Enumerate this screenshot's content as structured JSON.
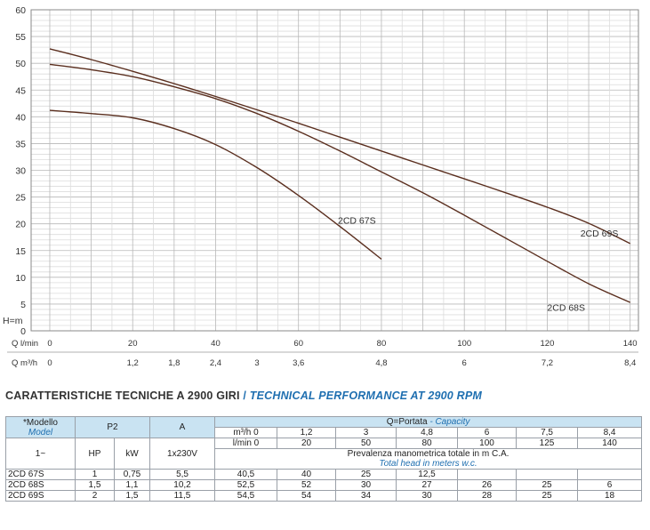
{
  "chart_data": {
    "type": "line",
    "y_ticks": [
      "0",
      "5",
      "10",
      "15",
      "20",
      "25",
      "30",
      "35",
      "40",
      "45",
      "50",
      "55",
      "60"
    ],
    "ylim": [
      0,
      60
    ],
    "ylabel": "H=m",
    "x_axis_lmin": {
      "label": "Q  l/min",
      "ticks": [
        "0",
        "20",
        "40",
        "60",
        "80",
        "100",
        "120",
        "140"
      ]
    },
    "x_axis_m3h": {
      "label": "Q  m³/h",
      "ticks": [
        "0",
        "1,2",
        "1,8",
        "2,4",
        "3",
        "3,6",
        "4,8",
        "6",
        "7,2",
        "8,4"
      ],
      "tick_lmin": [
        0,
        20,
        30,
        40,
        50,
        60,
        80,
        100,
        120,
        140
      ]
    },
    "xlim": [
      0,
      142
    ],
    "grid": true,
    "series": [
      {
        "name": "2CD 67S",
        "x": [
          0,
          10,
          20,
          30,
          40,
          50,
          60,
          70,
          80
        ],
        "y": [
          41.2,
          40.6,
          39.8,
          37.8,
          34.8,
          30.5,
          25.3,
          19.5,
          13.4
        ]
      },
      {
        "name": "2CD 68S",
        "x": [
          0,
          10,
          20,
          30,
          40,
          50,
          60,
          70,
          80,
          90,
          100,
          110,
          120,
          130,
          140
        ],
        "y": [
          49.8,
          48.8,
          47.5,
          45.6,
          43.4,
          40.6,
          37.3,
          33.6,
          29.7,
          25.8,
          21.6,
          17.3,
          13.0,
          8.8,
          5.3
        ]
      },
      {
        "name": "2CD 69S",
        "x": [
          0,
          10,
          20,
          30,
          40,
          50,
          60,
          70,
          80,
          90,
          100,
          110,
          120,
          130,
          140
        ],
        "y": [
          52.7,
          50.7,
          48.5,
          46.2,
          43.8,
          41.3,
          38.8,
          36.2,
          33.6,
          31.0,
          28.4,
          25.8,
          23.1,
          20.1,
          16.3
        ]
      }
    ]
  },
  "heading": {
    "it": "CARATTERISTICHE TECNICHE A 2900 GIRI",
    "sep": " / ",
    "en": "TECHNICAL PERFORMANCE AT 2900 RPM"
  },
  "table": {
    "model_it": "*Modello",
    "model_en": "Model",
    "p2": "P2",
    "amp": "A",
    "capacity_it": "Q=Portata",
    "capacity_sep": " - ",
    "capacity_en": "Capacity",
    "m3h_row": [
      "m³/h 0",
      "1,2",
      "3",
      "4,8",
      "6",
      "7,5",
      "8,4"
    ],
    "lmin_row": [
      "l/min 0",
      "20",
      "50",
      "80",
      "100",
      "125",
      "140"
    ],
    "phase": "1~",
    "hp": "HP",
    "kw": "kW",
    "voltage": "1x230V",
    "head_it": "Prevalenza manometrica totale in m C.A.",
    "head_en": "Total head in meters w.c.",
    "rows": [
      {
        "model": "2CD 67S",
        "hp": "1",
        "kw": "0,75",
        "a": "5,5",
        "vals": [
          "40,5",
          "40",
          "25",
          "12,5",
          "",
          "",
          ""
        ]
      },
      {
        "model": "2CD 68S",
        "hp": "1,5",
        "kw": "1,1",
        "a": "10,2",
        "vals": [
          "52,5",
          "52",
          "30",
          "27",
          "26",
          "25",
          "6"
        ]
      },
      {
        "model": "2CD 69S",
        "hp": "2",
        "kw": "1,5",
        "a": "11,5",
        "vals": [
          "54,5",
          "54",
          "34",
          "30",
          "28",
          "25",
          "18"
        ]
      }
    ]
  },
  "colors": {
    "curve": "#5a2e1e",
    "grid": "#c8c8c8",
    "header_bg": "#c9e3f2",
    "accent": "#1f6fb0"
  }
}
